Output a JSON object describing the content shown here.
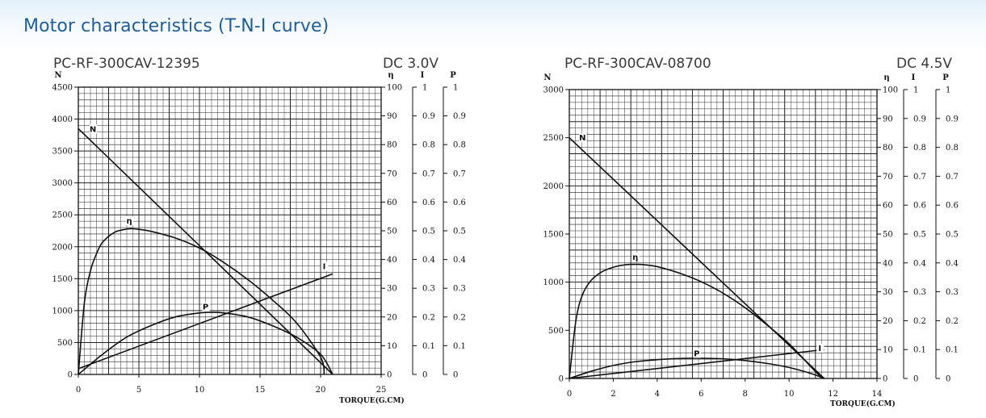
{
  "page": {
    "title": "Motor characteristics (T-N-I curve)"
  },
  "chart_data": [
    {
      "type": "line",
      "title": "PC-RF-300CAV-12395",
      "voltage": "DC 3.0V",
      "xlabel": "TORQUE(G.CM)",
      "ylabel": "N",
      "xlim": [
        0,
        25
      ],
      "ylim": [
        0,
        4500
      ],
      "x_ticks": [
        0,
        5,
        10,
        15,
        20,
        25
      ],
      "y_ticks": [
        0,
        500,
        1000,
        1500,
        2000,
        2500,
        3000,
        3500,
        4000,
        4500
      ],
      "right_axes": [
        {
          "label": "η",
          "ticks": [
            0,
            10,
            20,
            30,
            40,
            50,
            60,
            70,
            80,
            90,
            100
          ]
        },
        {
          "label": "I",
          "ticks": [
            0,
            0.1,
            0.2,
            0.3,
            0.4,
            0.5,
            0.6,
            0.7,
            0.8,
            0.9,
            1
          ]
        },
        {
          "label": "P",
          "ticks": [
            0,
            0.1,
            0.2,
            0.3,
            0.4,
            0.5,
            0.6,
            0.7,
            0.8,
            0.9,
            1
          ]
        }
      ],
      "grid": true,
      "series": [
        {
          "name": "N",
          "axis": "N",
          "x": [
            0,
            21
          ],
          "y": [
            3850,
            0
          ]
        },
        {
          "name": "η",
          "axis": "η",
          "x": [
            0,
            0.5,
            1,
            1.5,
            2,
            3,
            4,
            4.5,
            5,
            6,
            8,
            10,
            12,
            14,
            16,
            18,
            20,
            20.3
          ],
          "y": [
            0,
            25,
            36,
            42,
            46,
            49.5,
            50.6,
            50.7,
            50.5,
            49.8,
            47.5,
            44,
            39,
            33,
            26,
            18,
            6,
            0
          ]
        },
        {
          "name": "I",
          "axis": "I",
          "x": [
            0,
            21
          ],
          "y": [
            0.02,
            0.35
          ]
        },
        {
          "name": "P",
          "axis": "P",
          "x": [
            0,
            2,
            4,
            6,
            8,
            10,
            11,
            12,
            14,
            16,
            18,
            20,
            21
          ],
          "y": [
            0,
            0.07,
            0.13,
            0.17,
            0.2,
            0.214,
            0.216,
            0.214,
            0.2,
            0.17,
            0.13,
            0.07,
            0
          ]
        }
      ],
      "labels": [
        {
          "text": "N",
          "x": 1.2,
          "y": 3800,
          "axis": "N"
        },
        {
          "text": "η",
          "x": 4.2,
          "y": 52.5,
          "axis": "η"
        },
        {
          "text": "I",
          "x": 20.3,
          "y": 0.366,
          "axis": "I"
        },
        {
          "text": "P",
          "x": 10.5,
          "y": 0.226,
          "axis": "P"
        }
      ]
    },
    {
      "type": "line",
      "title": "PC-RF-300CAV-08700",
      "voltage": "DC 4.5V",
      "xlabel": "TORQUE(G.CM)",
      "ylabel": "N",
      "xlim": [
        0,
        14
      ],
      "ylim": [
        0,
        3000
      ],
      "x_ticks": [
        0,
        2,
        4,
        6,
        8,
        10,
        12,
        14
      ],
      "y_ticks": [
        0,
        500,
        1000,
        1500,
        2000,
        2500,
        3000
      ],
      "right_axes": [
        {
          "label": "η",
          "ticks": [
            0,
            10,
            20,
            30,
            40,
            50,
            60,
            70,
            80,
            90,
            100
          ]
        },
        {
          "label": "I",
          "ticks": [
            0,
            0.1,
            0.2,
            0.3,
            0.4,
            0.5,
            0.6,
            0.7,
            0.8,
            0.9,
            1
          ]
        },
        {
          "label": "P",
          "ticks": [
            0,
            0.1,
            0.2,
            0.3,
            0.4,
            0.5,
            0.6,
            0.7,
            0.8,
            0.9,
            1
          ]
        }
      ],
      "grid": true,
      "series": [
        {
          "name": "N",
          "axis": "N",
          "x": [
            0,
            11.6
          ],
          "y": [
            2500,
            0
          ]
        },
        {
          "name": "η",
          "axis": "η",
          "x": [
            0,
            0.3,
            0.6,
            1,
            1.5,
            2,
            2.5,
            3,
            3.5,
            4,
            5,
            6,
            7,
            8,
            9,
            10,
            11,
            11.5
          ],
          "y": [
            0,
            20,
            29,
            34,
            37,
            38.5,
            39.3,
            39.5,
            39.3,
            38.7,
            36.5,
            33.5,
            29.5,
            24.5,
            18.5,
            12,
            4,
            0
          ]
        },
        {
          "name": "I",
          "axis": "I",
          "x": [
            0,
            11.6
          ],
          "y": [
            0,
            0.1
          ]
        },
        {
          "name": "P",
          "axis": "P",
          "x": [
            0,
            1,
            2,
            3,
            4,
            5,
            5.8,
            7,
            8,
            9,
            10,
            11,
            11.6
          ],
          "y": [
            0,
            0.025,
            0.045,
            0.058,
            0.065,
            0.069,
            0.07,
            0.068,
            0.062,
            0.052,
            0.038,
            0.017,
            0
          ]
        }
      ],
      "labels": [
        {
          "text": "N",
          "x": 0.6,
          "y": 2470,
          "axis": "N"
        },
        {
          "text": "η",
          "x": 3.0,
          "y": 41,
          "axis": "η"
        },
        {
          "text": "I",
          "x": 11.4,
          "y": 0.095,
          "axis": "I"
        },
        {
          "text": "P",
          "x": 5.8,
          "y": 0.077,
          "axis": "P"
        }
      ]
    }
  ]
}
